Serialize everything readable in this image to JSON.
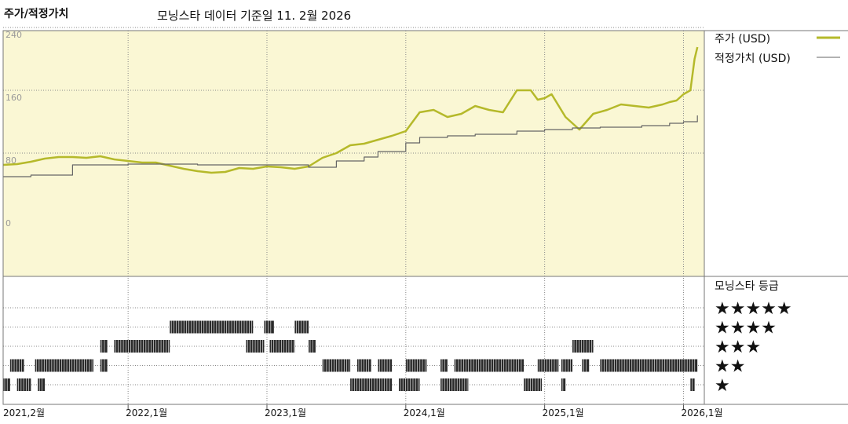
{
  "header": {
    "left_title": "주가/적정가치",
    "data_date": "모닝스타 데이터 기준일 11. 2월 2026"
  },
  "chart_data": {
    "type": "line",
    "ylim": [
      0,
      260
    ],
    "y_ticks": [
      "240",
      "160",
      "80",
      "0"
    ],
    "x_ticks": [
      "2021,2월",
      "2022,1월",
      "2023,1월",
      "2024,1월",
      "2025,1월",
      "2026,1월"
    ],
    "x_tick_years": [
      2021.1,
      2022.0,
      2023.0,
      2024.0,
      2025.0,
      2026.0
    ],
    "xlim": [
      2021.1,
      2026.15
    ],
    "legend": {
      "position": "right"
    },
    "series": [
      {
        "name": "주가 (USD)",
        "color": "#b5b92a",
        "points": [
          [
            2021.1,
            65
          ],
          [
            2021.2,
            66
          ],
          [
            2021.3,
            69
          ],
          [
            2021.4,
            73
          ],
          [
            2021.5,
            75
          ],
          [
            2021.6,
            75
          ],
          [
            2021.7,
            74
          ],
          [
            2021.8,
            76
          ],
          [
            2021.9,
            72
          ],
          [
            2022.0,
            70
          ],
          [
            2022.1,
            68
          ],
          [
            2022.2,
            68
          ],
          [
            2022.3,
            64
          ],
          [
            2022.4,
            60
          ],
          [
            2022.5,
            57
          ],
          [
            2022.6,
            55
          ],
          [
            2022.7,
            56
          ],
          [
            2022.8,
            61
          ],
          [
            2022.9,
            60
          ],
          [
            2023.0,
            63
          ],
          [
            2023.1,
            62
          ],
          [
            2023.2,
            60
          ],
          [
            2023.3,
            63
          ],
          [
            2023.4,
            74
          ],
          [
            2023.5,
            80
          ],
          [
            2023.6,
            90
          ],
          [
            2023.7,
            92
          ],
          [
            2023.8,
            97
          ],
          [
            2023.9,
            102
          ],
          [
            2024.0,
            108
          ],
          [
            2024.1,
            132
          ],
          [
            2024.2,
            135
          ],
          [
            2024.3,
            126
          ],
          [
            2024.4,
            130
          ],
          [
            2024.5,
            140
          ],
          [
            2024.6,
            135
          ],
          [
            2024.7,
            132
          ],
          [
            2024.8,
            160
          ],
          [
            2024.9,
            160
          ],
          [
            2024.95,
            148
          ],
          [
            2025.0,
            150
          ],
          [
            2025.05,
            155
          ],
          [
            2025.15,
            126
          ],
          [
            2025.25,
            110
          ],
          [
            2025.35,
            130
          ],
          [
            2025.45,
            135
          ],
          [
            2025.55,
            142
          ],
          [
            2025.65,
            140
          ],
          [
            2025.75,
            138
          ],
          [
            2025.85,
            142
          ],
          [
            2025.9,
            145
          ],
          [
            2025.95,
            147
          ],
          [
            2026.0,
            155
          ],
          [
            2026.05,
            160
          ],
          [
            2026.08,
            200
          ],
          [
            2026.1,
            215
          ]
        ]
      },
      {
        "name": "적정가치 (USD)",
        "color": "#666666",
        "points": [
          [
            2021.1,
            50
          ],
          [
            2021.3,
            52
          ],
          [
            2021.6,
            58
          ],
          [
            2021.6,
            65
          ],
          [
            2022.0,
            66
          ],
          [
            2022.5,
            65
          ],
          [
            2023.0,
            65
          ],
          [
            2023.3,
            62
          ],
          [
            2023.5,
            70
          ],
          [
            2023.7,
            75
          ],
          [
            2023.8,
            82
          ],
          [
            2024.0,
            93
          ],
          [
            2024.1,
            100
          ],
          [
            2024.3,
            102
          ],
          [
            2024.5,
            104
          ],
          [
            2024.8,
            108
          ],
          [
            2025.0,
            110
          ],
          [
            2025.2,
            112
          ],
          [
            2025.4,
            113
          ],
          [
            2025.7,
            115
          ],
          [
            2025.9,
            118
          ],
          [
            2026.0,
            120
          ],
          [
            2026.1,
            128
          ]
        ]
      }
    ],
    "rating_panel": {
      "title": "모닝스타 등급",
      "levels": [
        "★★★★★",
        "★★★★",
        "★★★",
        "★★",
        "★"
      ],
      "segments": [
        {
          "stars": 4,
          "from": 2022.3,
          "to": 2022.9
        },
        {
          "stars": 4,
          "from": 2022.98,
          "to": 2023.05
        },
        {
          "stars": 4,
          "from": 2023.2,
          "to": 2023.3
        },
        {
          "stars": 3,
          "from": 2021.8,
          "to": 2021.85
        },
        {
          "stars": 3,
          "from": 2021.9,
          "to": 2022.3
        },
        {
          "stars": 3,
          "from": 2022.85,
          "to": 2022.98
        },
        {
          "stars": 3,
          "from": 2023.02,
          "to": 2023.2
        },
        {
          "stars": 3,
          "from": 2023.3,
          "to": 2023.35
        },
        {
          "stars": 3,
          "from": 2025.2,
          "to": 2025.35
        },
        {
          "stars": 2,
          "from": 2021.15,
          "to": 2021.25
        },
        {
          "stars": 2,
          "from": 2021.33,
          "to": 2021.75
        },
        {
          "stars": 2,
          "from": 2021.8,
          "to": 2021.85
        },
        {
          "stars": 2,
          "from": 2023.4,
          "to": 2023.6
        },
        {
          "stars": 2,
          "from": 2023.65,
          "to": 2023.75
        },
        {
          "stars": 2,
          "from": 2023.8,
          "to": 2023.9
        },
        {
          "stars": 2,
          "from": 2024.0,
          "to": 2024.15
        },
        {
          "stars": 2,
          "from": 2024.25,
          "to": 2024.3
        },
        {
          "stars": 2,
          "from": 2024.35,
          "to": 2024.85
        },
        {
          "stars": 2,
          "from": 2024.95,
          "to": 2025.1
        },
        {
          "stars": 2,
          "from": 2025.12,
          "to": 2025.2
        },
        {
          "stars": 2,
          "from": 2025.27,
          "to": 2025.32
        },
        {
          "stars": 2,
          "from": 2025.4,
          "to": 2026.1
        },
        {
          "stars": 1,
          "from": 2021.1,
          "to": 2021.15
        },
        {
          "stars": 1,
          "from": 2021.2,
          "to": 2021.3
        },
        {
          "stars": 1,
          "from": 2021.35,
          "to": 2021.4
        },
        {
          "stars": 1,
          "from": 2023.6,
          "to": 2023.9
        },
        {
          "stars": 1,
          "from": 2023.95,
          "to": 2024.1
        },
        {
          "stars": 1,
          "from": 2024.25,
          "to": 2024.45
        },
        {
          "stars": 1,
          "from": 2024.85,
          "to": 2024.98
        },
        {
          "stars": 1,
          "from": 2025.12,
          "to": 2025.15
        },
        {
          "stars": 1,
          "from": 2026.05,
          "to": 2026.08
        }
      ]
    }
  }
}
